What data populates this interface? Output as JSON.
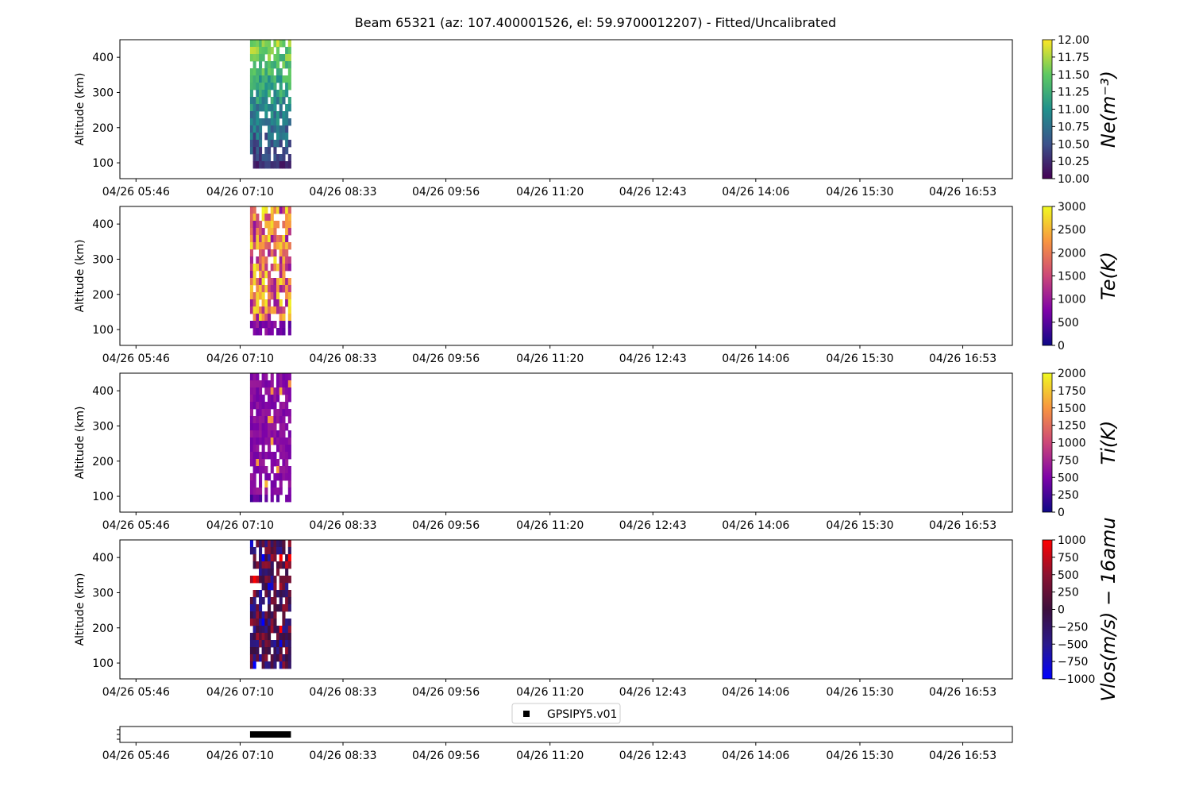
{
  "title": "Beam 65321 (az: 107.400001526, el: 59.9700012207) - Fitted/Uncalibrated",
  "chart_data": {
    "type": "heatmap",
    "x_tick_labels": [
      "04/26 05:46",
      "04/26 07:10",
      "04/26 08:33",
      "04/26 09:56",
      "04/26 11:20",
      "04/26 12:43",
      "04/26 14:06",
      "04/26 15:30",
      "04/26 16:53"
    ],
    "x_tick_minutes": [
      346,
      430,
      513,
      596,
      680,
      763,
      846,
      930,
      1013
    ],
    "xlim_minutes": [
      333,
      1053
    ],
    "data_time_range_minutes": [
      438,
      471
    ],
    "data_time_range_labels": [
      "04/26 07:18",
      "04/26 07:51"
    ],
    "panels": [
      {
        "ylabel": "Altitude (km)",
        "yticks": [
          100,
          200,
          300,
          400
        ],
        "ylim": [
          55,
          450
        ],
        "data_alt_range_km": [
          85,
          450
        ],
        "colorbar": {
          "label": "Ne(m⁻³)",
          "label_svg": "Ne(m",
          "range": [
            10.0,
            12.0
          ],
          "ticks": [
            "10.00",
            "10.25",
            "10.50",
            "10.75",
            "11.00",
            "11.25",
            "11.50",
            "11.75",
            "12.00"
          ],
          "colormap": "viridis",
          "colors": [
            "#440154",
            "#3b528b",
            "#21918c",
            "#5ec962",
            "#fde725"
          ]
        },
        "field_trend": "increasing-with-altitude",
        "typical_range": [
          10.2,
          11.8
        ]
      },
      {
        "ylabel": "Altitude (km)",
        "yticks": [
          100,
          200,
          300,
          400
        ],
        "ylim": [
          55,
          450
        ],
        "data_alt_range_km": [
          85,
          450
        ],
        "colorbar": {
          "label": "Te(K)",
          "range": [
            0,
            3000
          ],
          "ticks": [
            "0",
            "500",
            "1000",
            "1500",
            "2000",
            "2500",
            "3000"
          ],
          "colormap": "plasma",
          "colors": [
            "#0d0887",
            "#7e03a8",
            "#cc4778",
            "#f89540",
            "#f0f921"
          ]
        },
        "field_trend": "mixed-high-variance",
        "typical_range": [
          600,
          3000
        ]
      },
      {
        "ylabel": "Altitude (km)",
        "yticks": [
          100,
          200,
          300,
          400
        ],
        "ylim": [
          55,
          450
        ],
        "data_alt_range_km": [
          85,
          450
        ],
        "colorbar": {
          "label": "Ti(K)",
          "range": [
            0,
            2000
          ],
          "ticks": [
            "0",
            "250",
            "500",
            "750",
            "1000",
            "1250",
            "1500",
            "1750",
            "2000"
          ],
          "colormap": "plasma",
          "colors": [
            "#0d0887",
            "#7e03a8",
            "#cc4778",
            "#f89540",
            "#f0f921"
          ]
        },
        "field_trend": "mostly-purple-low",
        "typical_range": [
          300,
          700
        ]
      },
      {
        "ylabel": "Altitude (km)",
        "yticks": [
          100,
          200,
          300,
          400
        ],
        "ylim": [
          55,
          450
        ],
        "data_alt_range_km": [
          85,
          450
        ],
        "colorbar": {
          "label": "Vlos(m/s) − 16amu",
          "range": [
            -1000,
            1000
          ],
          "ticks": [
            "−1000",
            "−750",
            "−500",
            "−250",
            "0",
            "250",
            "500",
            "750",
            "1000"
          ],
          "colormap": "blue-darkpurple-red",
          "colors": [
            "#0000ff",
            "#2a1a8c",
            "#3d0f3d",
            "#8c1230",
            "#ff0000"
          ]
        },
        "field_trend": "near-zero-noisy",
        "typical_range": [
          -900,
          900
        ]
      }
    ],
    "coverage_panel": {
      "legend_label": "GPSIPY5.v01",
      "bar_color": "#000000",
      "bar_time_range_minutes": [
        438,
        471
      ]
    }
  }
}
